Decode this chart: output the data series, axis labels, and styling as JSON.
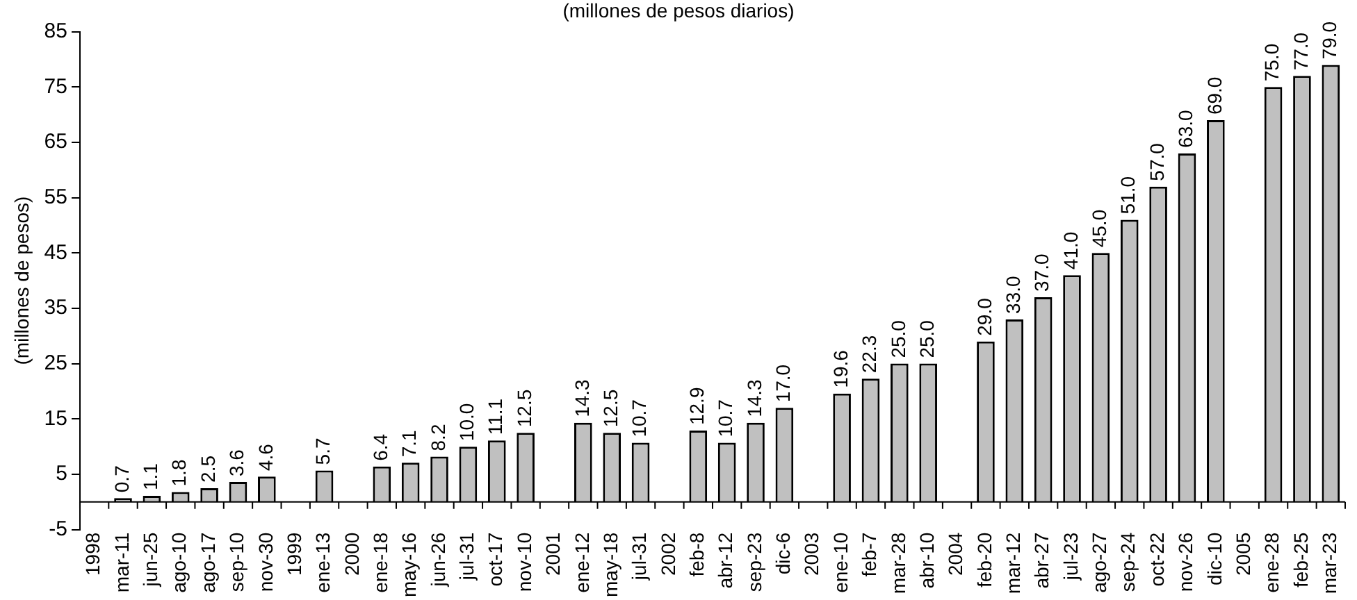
{
  "chart_data": {
    "type": "bar",
    "title": "(millones de pesos diarios)",
    "ylabel": "(millones de pesos)",
    "categories": [
      "1998",
      "mar-11",
      "jun-25",
      "ago-10",
      "ago-17",
      "sep-10",
      "nov-30",
      "1999",
      "ene-13",
      "2000",
      "ene-18",
      "may-16",
      "jun-26",
      "jul-31",
      "oct-17",
      "nov-10",
      "2001",
      "ene-12",
      "may-18",
      "jul-31",
      "2002",
      "feb-8",
      "abr-12",
      "sep-23",
      "dic-6",
      "2003",
      "ene-10",
      "feb-7",
      "mar-28",
      "abr-10",
      "2004",
      "feb-20",
      "mar-12",
      "abr-27",
      "jul-23",
      "ago-27",
      "sep-24",
      "oct-22",
      "nov-26",
      "dic-10",
      "2005",
      "ene-28",
      "feb-25",
      "mar-23"
    ],
    "values": [
      null,
      0.7,
      1.1,
      1.8,
      2.5,
      3.6,
      4.6,
      null,
      5.7,
      null,
      6.4,
      7.1,
      8.2,
      10.0,
      11.1,
      12.5,
      null,
      14.3,
      12.5,
      10.7,
      null,
      12.9,
      10.7,
      14.3,
      17.0,
      null,
      19.6,
      22.3,
      25.0,
      25.0,
      null,
      29.0,
      33.0,
      37.0,
      41.0,
      45.0,
      51.0,
      57.0,
      63.0,
      69.0,
      null,
      75.0,
      77.0,
      79.0
    ],
    "value_labels": [
      null,
      "0.7",
      "1.1",
      "1.8",
      "2.5",
      "3.6",
      "4.6",
      null,
      "5.7",
      null,
      "6.4",
      "7.1",
      "8.2",
      "10.0",
      "11.1",
      "12.5",
      null,
      "14.3",
      "12.5",
      "10.7",
      null,
      "12.9",
      "10.7",
      "14.3",
      "17.0",
      null,
      "19.6",
      "22.3",
      "25.0",
      "25.0",
      null,
      "29.0",
      "33.0",
      "37.0",
      "41.0",
      "45.0",
      "51.0",
      "57.0",
      "63.0",
      "69.0",
      null,
      "75.0",
      "77.0",
      "79.0"
    ],
    "color": "#c0c0c0",
    "ylim": [
      -5,
      85
    ],
    "yticks": [
      -5,
      5,
      15,
      25,
      35,
      45,
      55,
      65,
      75,
      85
    ],
    "grid": false,
    "legend": false
  }
}
